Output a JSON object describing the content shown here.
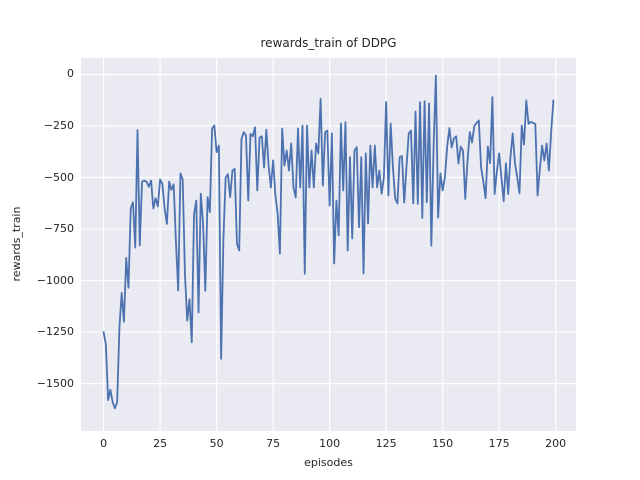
{
  "figure": {
    "title": "rewards_train of DDPG"
  },
  "axes": {
    "xlabel": "episodes",
    "ylabel": "rewards_train"
  },
  "colors": {
    "figure_bg": "#ffffff",
    "axes_bg": "#eaeaf2",
    "grid": "#ffffff",
    "line": "#4c72b0",
    "text": "#262626"
  },
  "chart_data": {
    "type": "line",
    "title": "rewards_train of DDPG",
    "xlabel": "episodes",
    "ylabel": "rewards_train",
    "x_start": 0,
    "x_step": 1,
    "xlim": [
      -10,
      209
    ],
    "ylim": [
      -1730,
      80
    ],
    "xticks": [
      0,
      25,
      50,
      75,
      100,
      125,
      150,
      175,
      200
    ],
    "yticks": [
      0,
      -250,
      -500,
      -750,
      -1000,
      -1250,
      -1500
    ],
    "grid": true,
    "legend": null,
    "series": [
      {
        "name": "rewards_train",
        "values": [
          -1250,
          -1310,
          -1580,
          -1530,
          -1590,
          -1620,
          -1590,
          -1230,
          -1060,
          -1200,
          -890,
          -1035,
          -650,
          -620,
          -840,
          -270,
          -830,
          -520,
          -515,
          -520,
          -545,
          -515,
          -650,
          -600,
          -640,
          -510,
          -530,
          -650,
          -725,
          -520,
          -560,
          -533,
          -810,
          -1048,
          -480,
          -510,
          -970,
          -1194,
          -1090,
          -1300,
          -680,
          -612,
          -1155,
          -578,
          -723,
          -1050,
          -595,
          -668,
          -262,
          -248,
          -377,
          -345,
          -1380,
          -800,
          -500,
          -484,
          -595,
          -466,
          -458,
          -822,
          -854,
          -312,
          -280,
          -296,
          -612,
          -288,
          -300,
          -256,
          -563,
          -306,
          -300,
          -451,
          -268,
          -442,
          -548,
          -417,
          -587,
          -675,
          -869,
          -262,
          -442,
          -369,
          -466,
          -335,
          -548,
          -597,
          -262,
          -548,
          -248,
          -967,
          -248,
          -548,
          -369,
          -548,
          -335,
          -383,
          -118,
          -539,
          -280,
          -272,
          -636,
          -286,
          -917,
          -612,
          -781,
          -238,
          -563,
          -231,
          -854,
          -401,
          -796,
          -369,
          -353,
          -741,
          -401,
          -966,
          -383,
          -723,
          -345,
          -548,
          -345,
          -548,
          -466,
          -578,
          -500,
          -134,
          -587,
          -238,
          -450,
          -602,
          -626,
          -401,
          -396,
          -621,
          -450,
          -286,
          -272,
          -626,
          -180,
          -628,
          -135,
          -696,
          -130,
          -620,
          -140,
          -831,
          -350,
          -5,
          -694,
          -480,
          -563,
          -500,
          -350,
          -260,
          -354,
          -310,
          -300,
          -432,
          -350,
          -370,
          -604,
          -420,
          -280,
          -330,
          -250,
          -235,
          -223,
          -450,
          -520,
          -600,
          -350,
          -430,
          -110,
          -580,
          -470,
          -383,
          -500,
          -615,
          -430,
          -580,
          -400,
          -286,
          -430,
          -500,
          -576,
          -248,
          -340,
          -126,
          -240,
          -230,
          -235,
          -240,
          -587,
          -460,
          -345,
          -417,
          -335,
          -466,
          -280,
          -126
        ]
      }
    ]
  }
}
